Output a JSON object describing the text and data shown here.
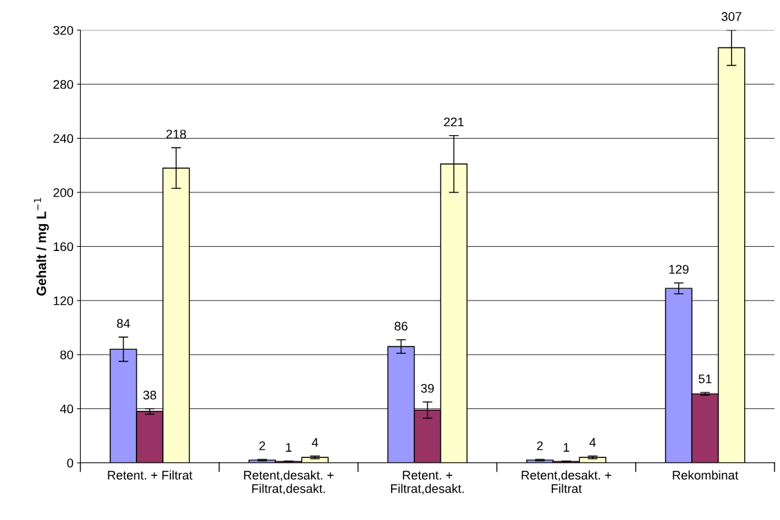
{
  "chart_data": {
    "type": "bar",
    "ylabel": "Gehalt / mg L$^{−1}$",
    "categories": [
      "Retent. + Filtrat",
      "Retent,desakt. +\nFiltrat,desakt.",
      "Retent. +\nFiltrat,desakt.",
      "Retent,desakt. +\nFiltrat",
      "Rekombinat"
    ],
    "series": [
      {
        "color": "#9999ff",
        "values": [
          84,
          2,
          86,
          2,
          129
        ],
        "errors": [
          9,
          0.5,
          5,
          0.5,
          4
        ]
      },
      {
        "color": "#993366",
        "values": [
          38,
          1,
          39,
          1,
          51
        ],
        "errors": [
          2,
          0.3,
          6,
          0.3,
          1
        ]
      },
      {
        "color": "#ffffcc",
        "values": [
          218,
          4,
          221,
          4,
          307
        ],
        "errors": [
          15,
          1,
          21,
          1,
          13
        ]
      }
    ],
    "ylim": [
      0,
      320
    ],
    "yticks": [
      0,
      40,
      80,
      120,
      160,
      200,
      240,
      280,
      320
    ],
    "grid": "y",
    "data_labels": true,
    "legend": false
  }
}
